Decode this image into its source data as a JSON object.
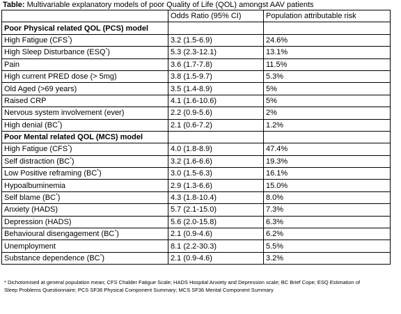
{
  "title": {
    "label": "Table:",
    "text": "Multivariable explanatory models of poor Quality of Life (QOL) amongst AAV patients"
  },
  "table": {
    "header": [
      "Odds Ratio (95% CI)",
      "Population attributable risk"
    ],
    "sections": [
      {
        "title": "Poor Physical related QOL (PCS) model",
        "rows": [
          [
            "High Fatigue (CFS*)",
            "3.2 (1.5-6.9)",
            "24.6%"
          ],
          [
            "High Sleep Disturbance (ESQ*)",
            "5.3 (2.3-12.1)",
            "13.1%"
          ],
          [
            "Pain",
            "3.6 (1.7-7.8)",
            "11.5%"
          ],
          [
            "High current PRED dose (> 5mg)",
            "3.8 (1.5-9.7)",
            "5.3%"
          ],
          [
            "Old Aged (>69 years)",
            "3.5 (1.4-8.9)",
            "5%"
          ],
          [
            "Raised CRP",
            "4.1 (1.6-10.6)",
            "5%"
          ],
          [
            "Nervous system involvement (ever)",
            "2.2 (0.9-5.6)",
            "2%"
          ],
          [
            "High denial (BC*)",
            "2.1 (0.6-7.2)",
            "1.2%"
          ]
        ]
      },
      {
        "title": "Poor Mental related QOL (MCS) model",
        "rows": [
          [
            "High Fatigue (CFS*)",
            "4.0 (1.8-8.9)",
            "47.4%"
          ],
          [
            "Self distraction (BC*)",
            "3.2 (1.6-6.6)",
            "19.3%"
          ],
          [
            "Low Positive reframing (BC*)",
            "3.0 (1.5-6.3)",
            "16.1%"
          ],
          [
            "Hypoalbuminemia",
            "2.9 (1.3-6.6)",
            "15.0%"
          ],
          [
            "Self blame (BC*)",
            "4.3 (1.8-10.4)",
            "8.0%"
          ],
          [
            "Anxiety (HADS)",
            "5.7 (2.1-15.0)",
            "7.3%"
          ],
          [
            "Depression (HADS)",
            "5.6 (2.0-15.8)",
            "6.3%"
          ],
          [
            "Behavioural disengagement (BC*)",
            "2.1 (0.9-4.6)",
            "6.2%"
          ],
          [
            "Unemployment",
            "8.1 (2.2-30.3)",
            "5.5%"
          ],
          [
            "Substance dependence (BC*)",
            "2.1 (0.9-4.6)",
            "3.2%"
          ]
        ]
      }
    ]
  },
  "footnote": "* Dichotomised at general population mean; CFS Chalder Fatigue Scale; HADS Hospital Anxiety and Depression scale; BC Brief Cope; ESQ Estimation of Sleep Problems Questionnaire; PCS SF36 Physical Component Summary; MCS SF36 Mental Component Summary"
}
